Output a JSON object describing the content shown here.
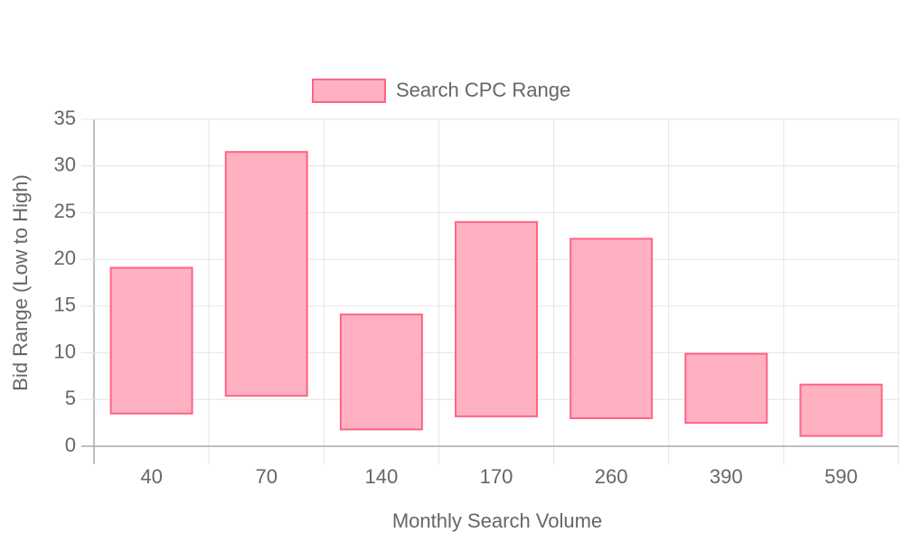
{
  "chart_data": {
    "type": "floating-bar",
    "x_label": "Monthly Search Volume",
    "y_label": "Bid Range (Low to High)",
    "categories": [
      "40",
      "70",
      "140",
      "170",
      "260",
      "390",
      "590"
    ],
    "series": [
      {
        "name": "Search CPC Range",
        "color": "#ff6384",
        "fill": "#ffb1c1",
        "values": [
          [
            3.5,
            19.1
          ],
          [
            5.4,
            31.5
          ],
          [
            1.8,
            14.1
          ],
          [
            3.2,
            24.0
          ],
          [
            3.0,
            22.2
          ],
          [
            2.5,
            9.9
          ],
          [
            1.1,
            6.6
          ]
        ]
      }
    ],
    "ylim": [
      0,
      35
    ],
    "yticks": [
      0,
      5,
      10,
      15,
      20,
      25,
      30,
      35
    ],
    "grid": true,
    "legend": "top"
  }
}
